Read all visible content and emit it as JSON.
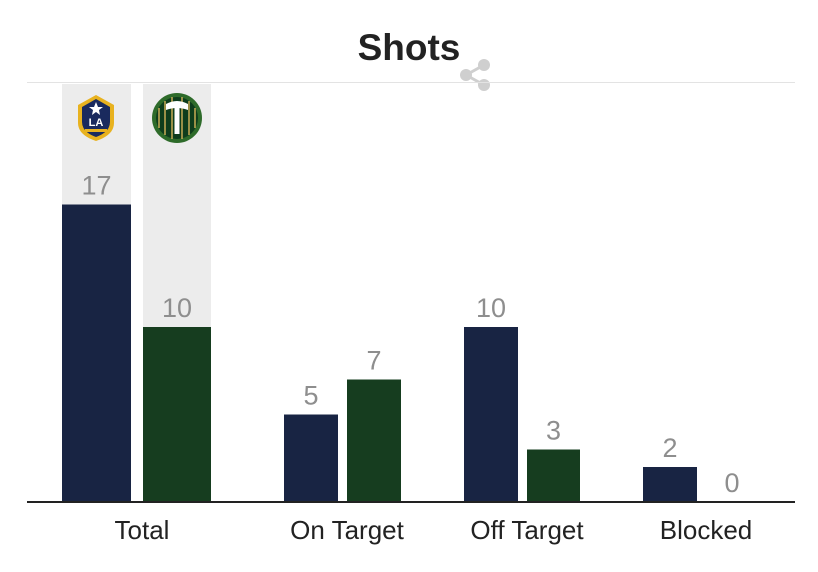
{
  "header": {
    "title": "Shots",
    "share_icon": "share-icon"
  },
  "teams": [
    {
      "name": "LA Galaxy",
      "color": "#182443",
      "logo_icon": "la-galaxy-logo"
    },
    {
      "name": "Portland Timbers",
      "color": "#163d1f",
      "logo_icon": "portland-timbers-logo"
    }
  ],
  "chart_data": {
    "type": "bar",
    "categories": [
      "Total",
      "On Target",
      "Off Target",
      "Blocked"
    ],
    "series": [
      {
        "values": [
          17,
          5,
          10,
          2
        ]
      },
      {
        "values": [
          10,
          7,
          3,
          0
        ]
      }
    ],
    "ylim": [
      0,
      20
    ],
    "grid": false,
    "legend": "none"
  }
}
